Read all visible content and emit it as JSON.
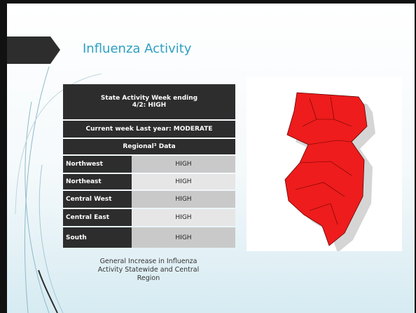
{
  "header": {
    "title": "Influenza Activity"
  },
  "table": {
    "header_rows": [
      "State Activity Week ending 4/2: HIGH",
      "Current week Last year: MODERATE",
      "Regional³ Data"
    ],
    "rows": [
      [
        "Northwest",
        "HIGH"
      ],
      [
        "Northeast",
        "HIGH"
      ],
      [
        "Central West",
        "HIGH"
      ],
      [
        "Central East",
        "HIGH"
      ],
      [
        "South",
        "HIGH"
      ]
    ]
  },
  "caption": "General Increase in Influenza Activity Statewide and Central Region"
}
